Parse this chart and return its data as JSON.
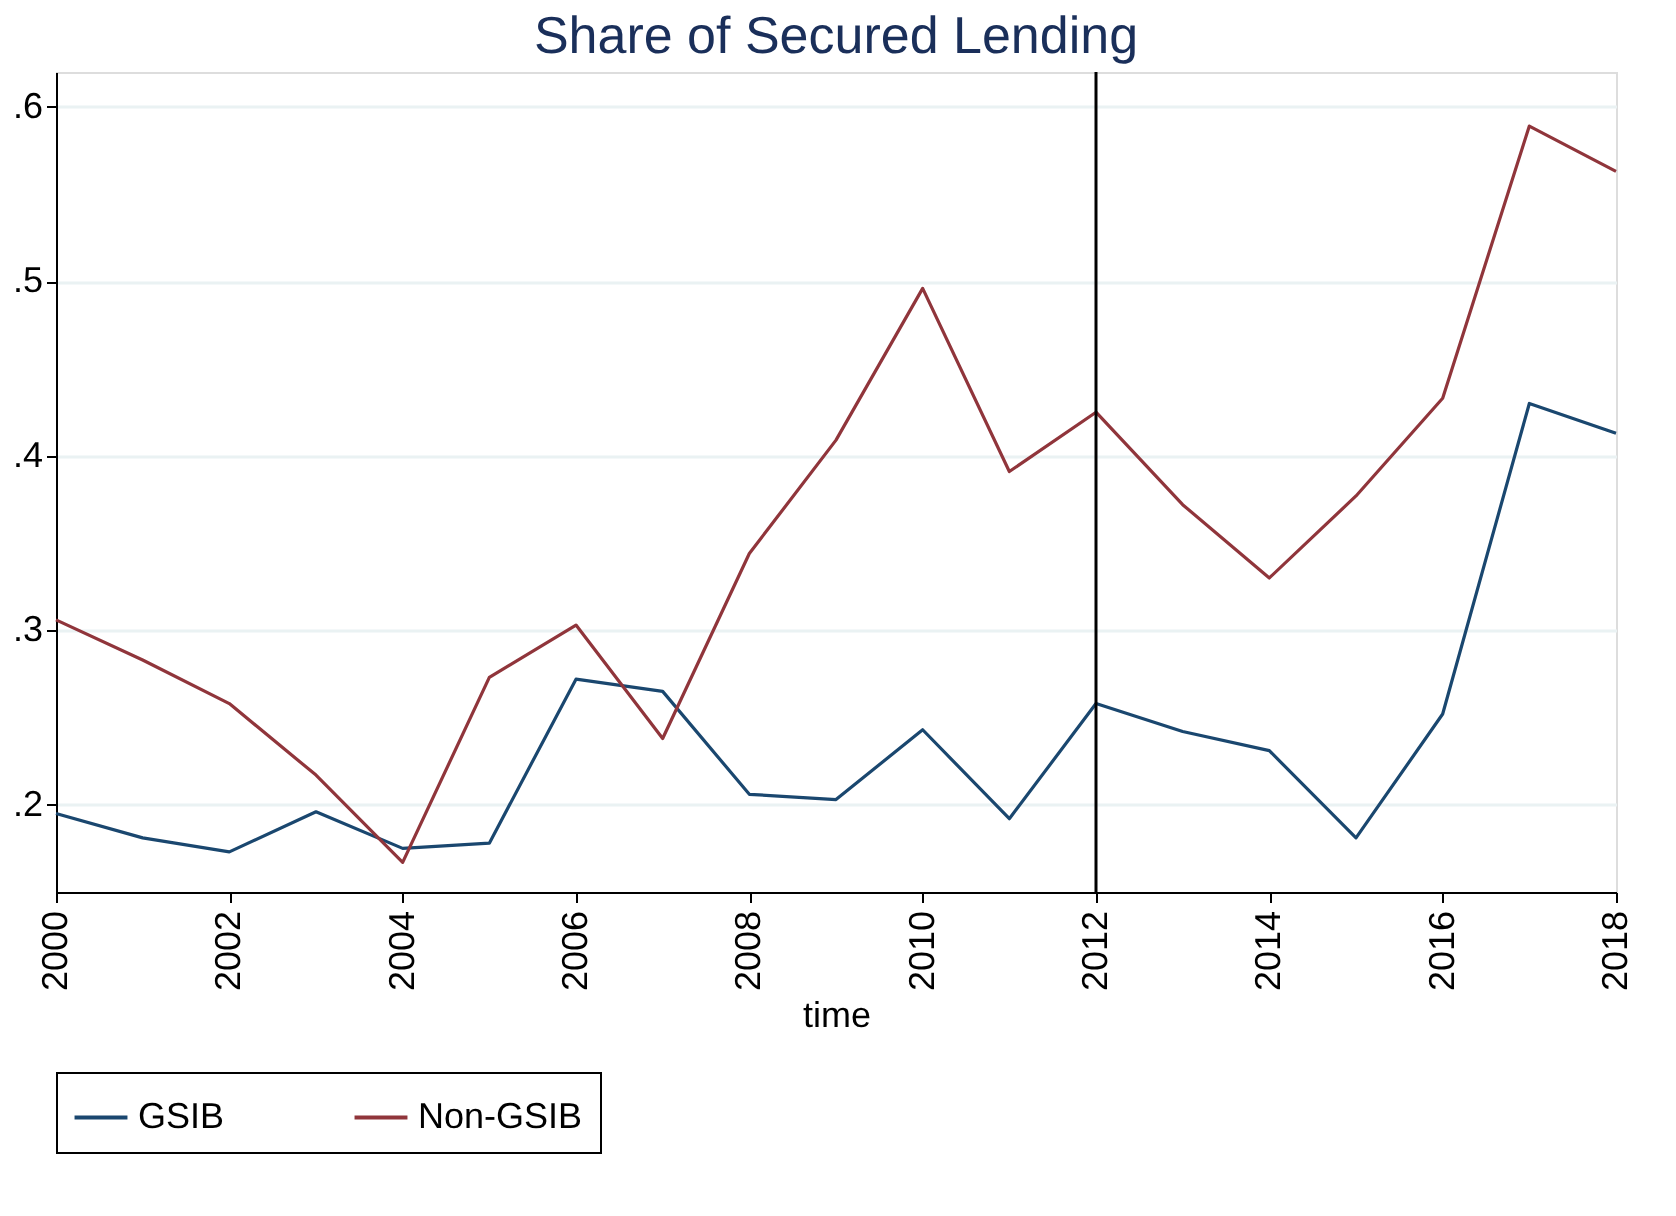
{
  "chart_data": {
    "type": "line",
    "title": "Share of Secured Lending",
    "xlabel": "time",
    "x": [
      2000,
      2001,
      2002,
      2003,
      2004,
      2005,
      2006,
      2007,
      2008,
      2009,
      2010,
      2011,
      2012,
      2013,
      2014,
      2015,
      2016,
      2017,
      2018
    ],
    "series": [
      {
        "name": "GSIB",
        "color": "#1a476f",
        "values": [
          0.195,
          0.181,
          0.173,
          0.196,
          0.175,
          0.178,
          0.272,
          0.265,
          0.206,
          0.203,
          0.243,
          0.192,
          0.258,
          0.242,
          0.231,
          0.181,
          0.252,
          0.43,
          0.413
        ]
      },
      {
        "name": "Non-GSIB",
        "color": "#90353b",
        "values": [
          0.306,
          0.283,
          0.258,
          0.217,
          0.167,
          0.273,
          0.303,
          0.238,
          0.344,
          0.409,
          0.496,
          0.391,
          0.425,
          0.372,
          0.33,
          0.377,
          0.433,
          0.589,
          0.563
        ]
      }
    ],
    "xlim": [
      2000,
      2018
    ],
    "xticks": [
      2000,
      2002,
      2004,
      2006,
      2008,
      2010,
      2012,
      2014,
      2016,
      2018
    ],
    "ylim": [
      0.15,
      0.62
    ],
    "yticks": [
      {
        "value": 0.2,
        "label": ".2"
      },
      {
        "value": 0.3,
        "label": ".3"
      },
      {
        "value": 0.4,
        "label": ".4"
      },
      {
        "value": 0.5,
        "label": ".5"
      },
      {
        "value": 0.6,
        "label": ".6"
      }
    ],
    "ref_lines": [
      {
        "axis": "x",
        "value": 2012,
        "color": "#000000"
      }
    ],
    "grid": "y",
    "legend": "bottom",
    "marker": "none",
    "line_style": "solid"
  }
}
